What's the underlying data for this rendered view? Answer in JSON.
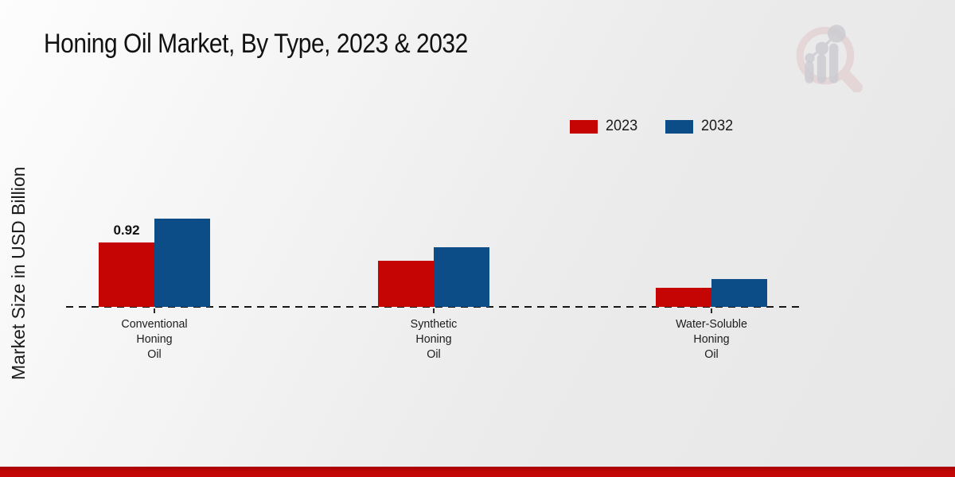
{
  "title": "Honing Oil Market, By Type, 2023 & 2032",
  "y_axis_label": "Market Size in USD Billion",
  "legend": {
    "items": [
      {
        "label": "2023",
        "color": "#c50404"
      },
      {
        "label": "2032",
        "color": "#0d4d87"
      }
    ]
  },
  "footer_band_color": "#c00505",
  "background_colors": [
    "#fdfdfd",
    "#e7e7e7"
  ],
  "logo_name": "market-research-future-watermark",
  "chart_data": {
    "type": "bar",
    "title": "Honing Oil Market, By Type, 2023 & 2032",
    "ylabel": "Market Size in USD Billion",
    "xlabel": "",
    "unit": "USD Billion",
    "categories": [
      "Conventional Honing Oil",
      "Synthetic Honing Oil",
      "Water-Soluble Honing Oil"
    ],
    "category_label_lines": [
      [
        "Conventional",
        "Honing",
        "Oil"
      ],
      [
        "Synthetic",
        "Honing",
        "Oil"
      ],
      [
        "Water-Soluble",
        "Honing",
        "Oil"
      ]
    ],
    "series": [
      {
        "name": "2023",
        "color": "#c50404",
        "values": [
          0.92,
          0.66,
          0.27
        ]
      },
      {
        "name": "2032",
        "color": "#0d4d87",
        "values": [
          1.26,
          0.85,
          0.4
        ]
      }
    ],
    "annotations": [
      {
        "series": "2023",
        "category_index": 0,
        "text": "0.92"
      }
    ],
    "baseline_style": "dashed",
    "grid": false,
    "y_axis_ticks_visible": false,
    "legend_position": "top-right"
  }
}
